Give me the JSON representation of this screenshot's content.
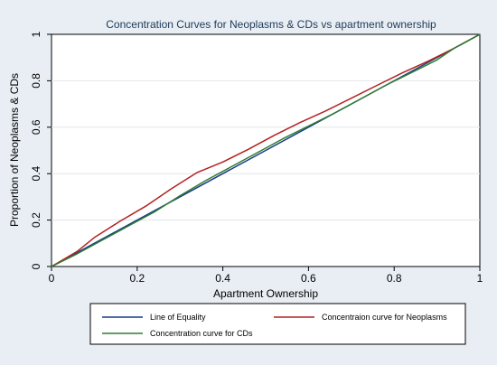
{
  "chart_data": {
    "type": "line",
    "title": "Concentration Curves for Neoplasms & CDs vs apartment ownership",
    "xlabel": "Apartment Ownership",
    "ylabel": "Proportion of Neoplasms & CDs",
    "xlim": [
      0,
      1
    ],
    "ylim": [
      0,
      1
    ],
    "x_ticks": [
      "0",
      "0.2",
      "0.4",
      "0.6",
      "0.8",
      "1"
    ],
    "y_ticks": [
      "0",
      "0.2",
      "0.4",
      "0.6",
      "0.8",
      "1"
    ],
    "grid": true,
    "legend_position": "bottom",
    "series": [
      {
        "name": "Line of Equality",
        "color": "#1a3a8a",
        "x": [
          0,
          1
        ],
        "y": [
          0,
          1
        ]
      },
      {
        "name": "Concentraion curve for Neoplasms",
        "color": "#b22222",
        "x": [
          0,
          0.06,
          0.1,
          0.16,
          0.22,
          0.28,
          0.34,
          0.4,
          0.46,
          0.52,
          0.58,
          0.64,
          0.7,
          0.76,
          0.82,
          0.88,
          0.94,
          1.0
        ],
        "y": [
          0,
          0.065,
          0.125,
          0.195,
          0.26,
          0.335,
          0.405,
          0.45,
          0.505,
          0.565,
          0.62,
          0.67,
          0.725,
          0.78,
          0.835,
          0.885,
          0.94,
          1.0
        ]
      },
      {
        "name": "Concentration curve for CDs",
        "color": "#2e7d32",
        "x": [
          0,
          0.06,
          0.12,
          0.18,
          0.24,
          0.3,
          0.36,
          0.42,
          0.48,
          0.54,
          0.6,
          0.66,
          0.72,
          0.78,
          0.84,
          0.9,
          0.94,
          1.0
        ],
        "y": [
          0,
          0.055,
          0.115,
          0.175,
          0.235,
          0.305,
          0.37,
          0.43,
          0.49,
          0.55,
          0.605,
          0.66,
          0.72,
          0.78,
          0.835,
          0.89,
          0.94,
          1.0
        ]
      }
    ]
  }
}
